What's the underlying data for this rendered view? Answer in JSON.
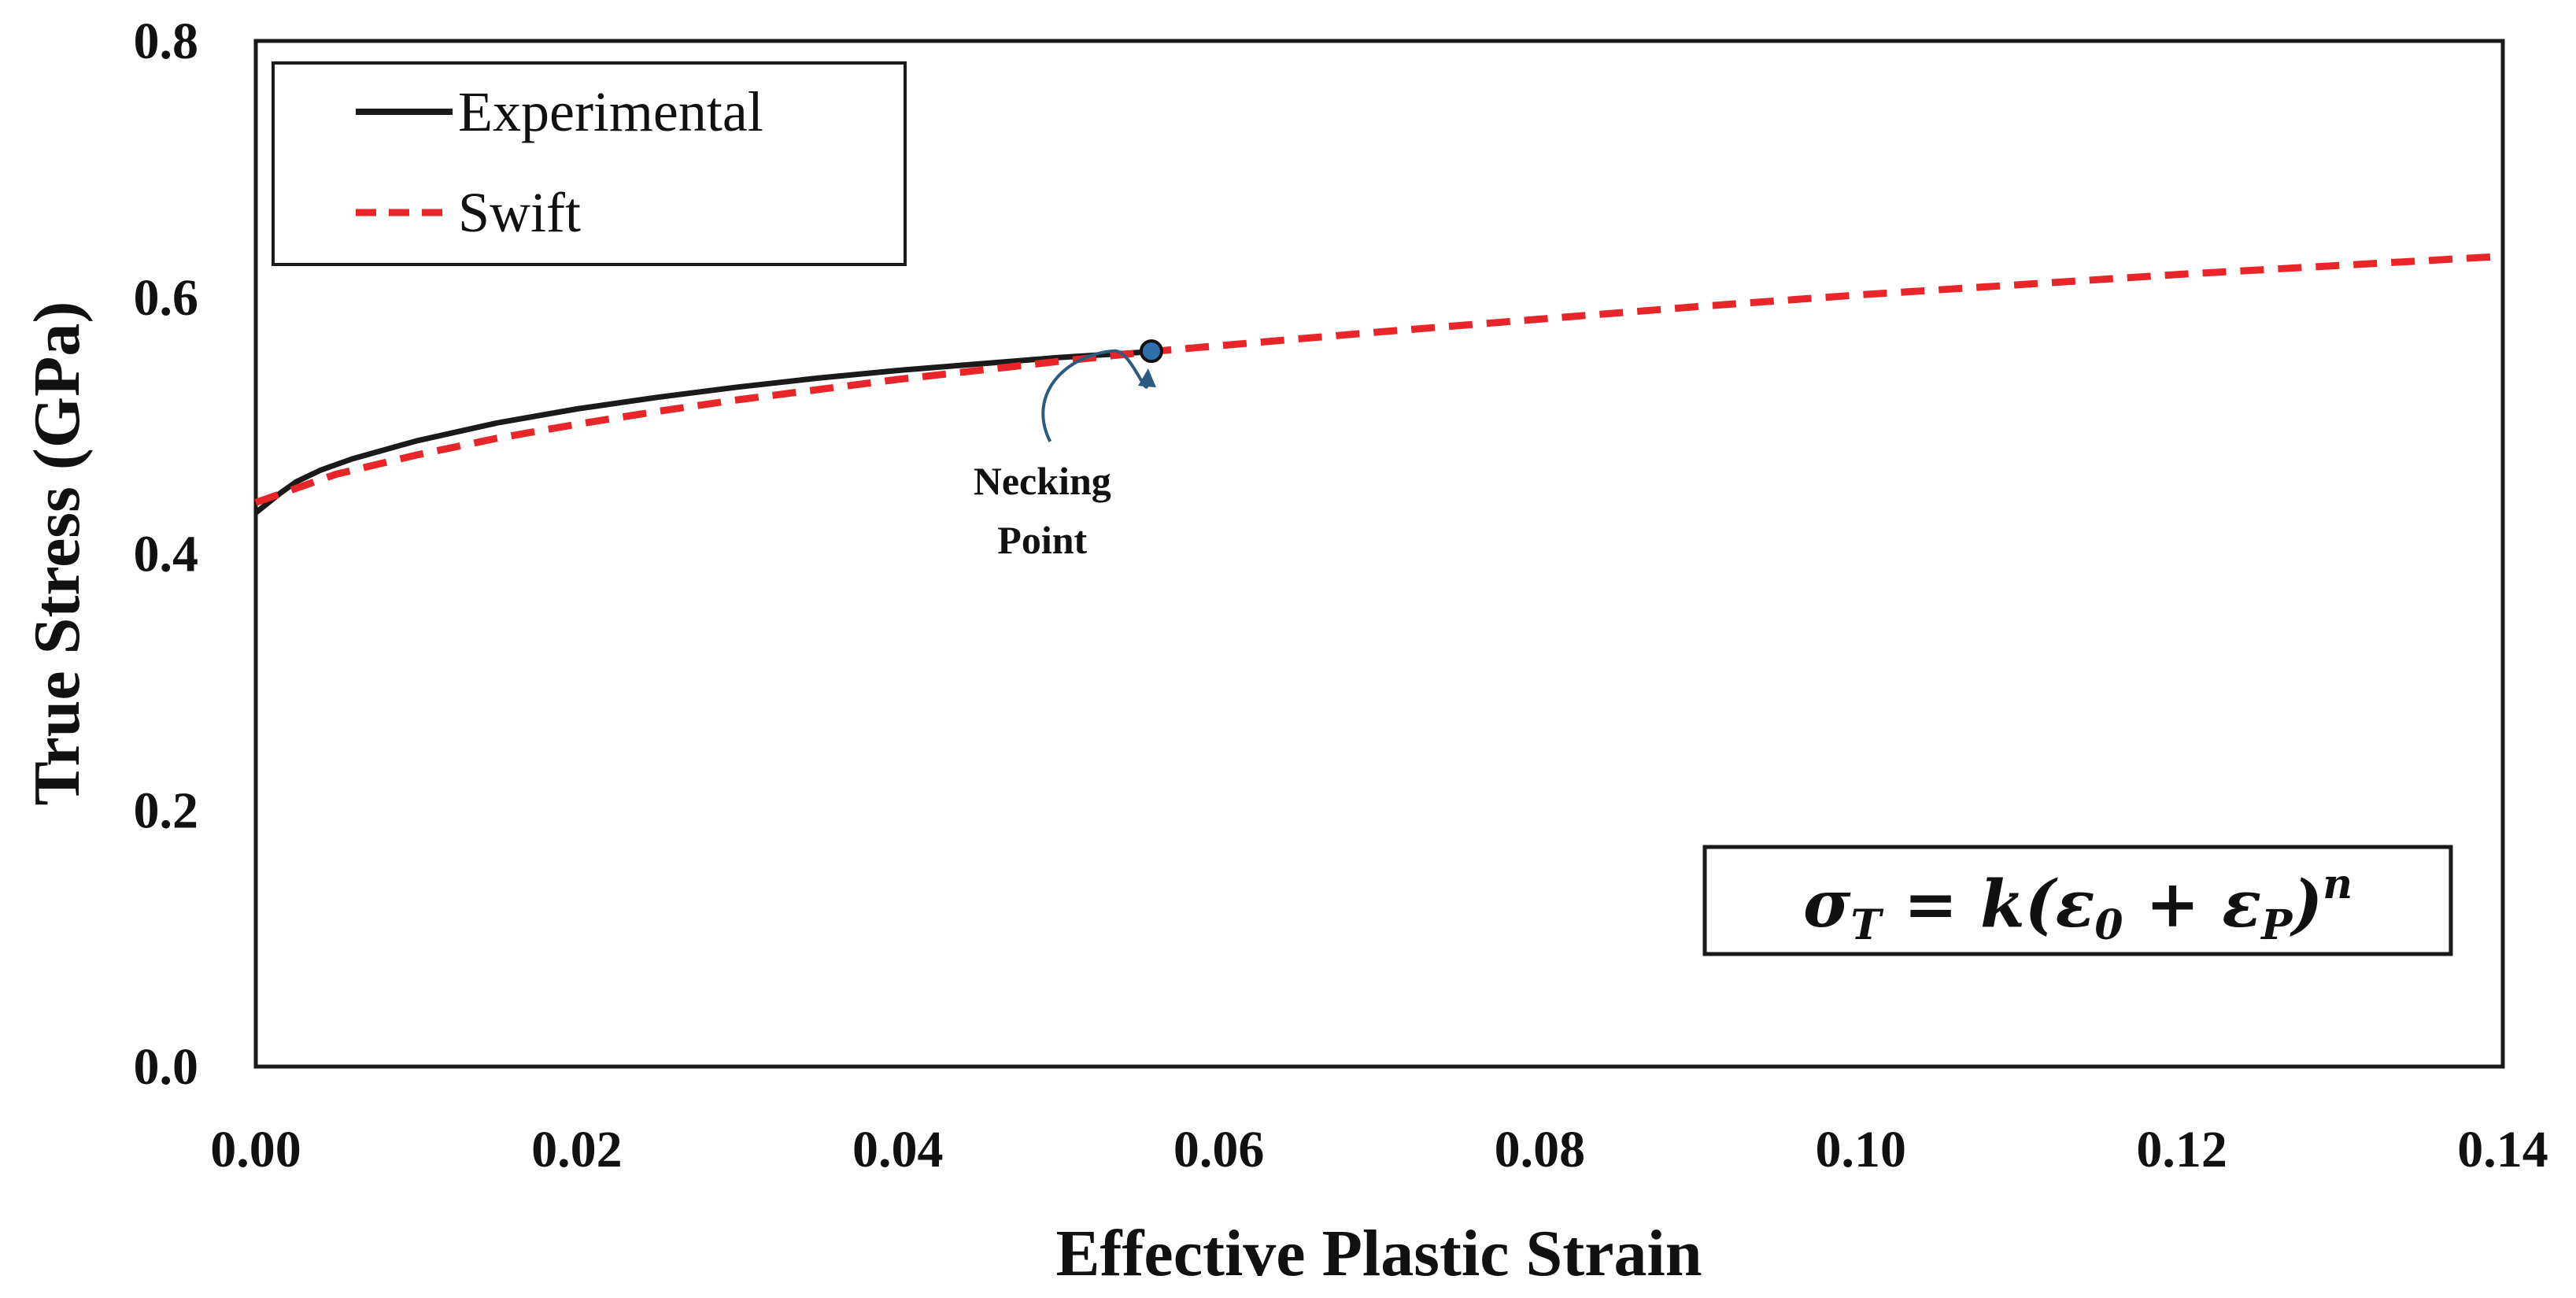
{
  "chart_data": {
    "type": "line",
    "title": "",
    "xlabel": "Effective Plastic Strain",
    "ylabel": "True Stress (GPa)",
    "xlim": [
      0.0,
      0.14
    ],
    "ylim": [
      0.0,
      0.8
    ],
    "x_ticks": [
      "0.00",
      "0.02",
      "0.04",
      "0.06",
      "0.08",
      "0.10",
      "0.12",
      "0.14"
    ],
    "y_ticks": [
      "0.0",
      "0.2",
      "0.4",
      "0.6",
      "0.8"
    ],
    "grid": false,
    "legend": {
      "position": "top-left",
      "entries": [
        "Experimental",
        "Swift"
      ]
    },
    "series": [
      {
        "name": "Experimental",
        "color": "#1a1a1a",
        "style": "solid",
        "x": [
          0.0,
          0.0015,
          0.0025,
          0.004,
          0.006,
          0.01,
          0.015,
          0.02,
          0.025,
          0.03,
          0.035,
          0.04,
          0.045,
          0.05,
          0.055,
          0.0558
        ],
        "y": [
          0.432,
          0.447,
          0.456,
          0.465,
          0.474,
          0.488,
          0.502,
          0.513,
          0.522,
          0.53,
          0.537,
          0.543,
          0.548,
          0.553,
          0.557,
          0.558
        ]
      },
      {
        "name": "Swift",
        "color": "#e8262a",
        "style": "dashed",
        "x": [
          0.0,
          0.005,
          0.01,
          0.015,
          0.02,
          0.025,
          0.03,
          0.04,
          0.05,
          0.056,
          0.07,
          0.08,
          0.09,
          0.1,
          0.11,
          0.12,
          0.13,
          0.14
        ],
        "y": [
          0.44,
          0.462,
          0.477,
          0.49,
          0.501,
          0.511,
          0.52,
          0.536,
          0.55,
          0.558,
          0.573,
          0.583,
          0.593,
          0.602,
          0.61,
          0.618,
          0.625,
          0.632
        ]
      }
    ],
    "annotations": [
      {
        "text_lines": [
          "Necking",
          "Point"
        ],
        "x": 0.0558,
        "y": 0.558,
        "label_x": 0.049,
        "label_y": 0.42
      }
    ],
    "equation": {
      "lhs": "σ",
      "lhs_sub": "T",
      "middle": " = k(ε",
      "sub0": "0",
      "plus": " + ε",
      "subP": "P",
      "close": ")",
      "exp": "n"
    }
  }
}
